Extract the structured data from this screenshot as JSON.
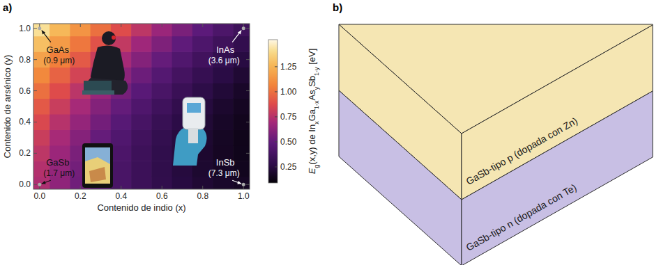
{
  "chart_data": {
    "type": "heatmap",
    "panel_label": "a)",
    "x_label": "Contenido de indio (x)",
    "y_label": "Contenido de arsénico (y)",
    "x": [
      0,
      0.1,
      0.2,
      0.3,
      0.4,
      0.5,
      0.6,
      0.7,
      0.8,
      0.9,
      1
    ],
    "y": [
      0,
      0.1,
      0.2,
      0.3,
      0.4,
      0.5,
      0.6,
      0.7,
      0.8,
      0.9,
      1
    ],
    "cells": [
      [
        0.726,
        0.633,
        0.548,
        0.472,
        0.404,
        0.344,
        0.293,
        0.25,
        0.215,
        0.188,
        0.17
      ],
      [
        0.741,
        0.645,
        0.556,
        0.476,
        0.405,
        0.342,
        0.287,
        0.241,
        0.203,
        0.173,
        0.152
      ],
      [
        0.769,
        0.668,
        0.575,
        0.491,
        0.416,
        0.349,
        0.291,
        0.241,
        0.2,
        0.167,
        0.143
      ],
      [
        0.808,
        0.703,
        0.605,
        0.517,
        0.437,
        0.366,
        0.304,
        0.25,
        0.205,
        0.169,
        0.141
      ],
      [
        0.86,
        0.749,
        0.647,
        0.554,
        0.469,
        0.394,
        0.327,
        0.269,
        0.22,
        0.179,
        0.148
      ],
      [
        0.923,
        0.807,
        0.699,
        0.601,
        0.512,
        0.431,
        0.359,
        0.297,
        0.243,
        0.198,
        0.162
      ],
      [
        0.998,
        0.876,
        0.763,
        0.659,
        0.564,
        0.478,
        0.402,
        0.334,
        0.275,
        0.225,
        0.184
      ],
      [
        1.086,
        0.957,
        0.838,
        0.728,
        0.627,
        0.536,
        0.453,
        0.38,
        0.316,
        0.261,
        0.215
      ],
      [
        1.185,
        1.05,
        0.925,
        0.808,
        0.701,
        0.603,
        0.515,
        0.435,
        0.365,
        0.305,
        0.253
      ],
      [
        1.297,
        1.155,
        1.022,
        0.899,
        0.785,
        0.68,
        0.585,
        0.5,
        0.424,
        0.357,
        0.3
      ],
      [
        1.42,
        1.27,
        1.131,
        1.0,
        0.879,
        0.768,
        0.666,
        0.574,
        0.491,
        0.418,
        0.354
      ]
    ],
    "xlim": [
      -0.03,
      1.03
    ],
    "ylim": [
      -0.03,
      1.03
    ],
    "xticks": [
      {
        "value": 0,
        "label": "0.0"
      },
      {
        "value": 0.2,
        "label": "0.2"
      },
      {
        "value": 0.4,
        "label": "0.4"
      },
      {
        "value": 0.6,
        "label": "0.6"
      },
      {
        "value": 0.8,
        "label": "0.8"
      },
      {
        "value": 1,
        "label": "1.0"
      }
    ],
    "yticks": [
      {
        "value": 0,
        "label": "0.0"
      },
      {
        "value": 0.2,
        "label": "0.2"
      },
      {
        "value": 0.4,
        "label": "0.4"
      },
      {
        "value": 0.6,
        "label": "0.6"
      },
      {
        "value": 0.8,
        "label": "0.8"
      },
      {
        "value": 1,
        "label": "1.0"
      }
    ],
    "colorbar_lim": [
      0.09,
      1.52
    ],
    "colorbar_ticks": [
      0.25,
      {
        "value": 0.5,
        "label": "0.50"
      },
      0.75,
      {
        "value": 1,
        "label": "1.00"
      },
      1.25
    ],
    "colorbar_label": [
      {
        "text": "E",
        "italic": true
      },
      {
        "text": "g",
        "sub": true
      },
      {
        "text": "(x,y) de In"
      },
      {
        "text": "x",
        "sub": true
      },
      {
        "text": "Ga"
      },
      {
        "text": "1-x",
        "sub": true
      },
      {
        "text": "As"
      },
      {
        "text": "y",
        "sub": true
      },
      {
        "text": "Sb"
      },
      {
        "text": "1-y",
        "sub": true
      },
      {
        "text": " [eV]"
      }
    ],
    "annotations": [
      {
        "text": "GaAs",
        "detail": "(0.9 μm)",
        "x": 0,
        "y": 1
      },
      {
        "text": "InAs",
        "detail": "(3.6 μm)",
        "x": 1,
        "y": 1
      },
      {
        "text": "GaSb",
        "detail": "(1.7 μm)",
        "x": 0,
        "y": 0
      },
      {
        "text": "InSb",
        "detail": "(7.3 μm)",
        "x": 1,
        "y": 0
      }
    ]
  },
  "diagram": {
    "panel_label": "b)",
    "layers": [
      {
        "text": "GaSb-tipo p (dopada con Zn)",
        "color": "#f5e6b3"
      },
      {
        "text": "GaSb-tipo n (dopada con Te)",
        "color": "#c8bfe4"
      }
    ]
  }
}
